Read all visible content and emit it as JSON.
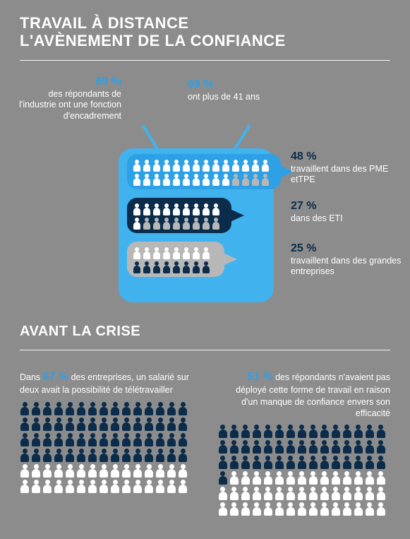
{
  "colors": {
    "background": "#8c8c8c",
    "accent_light": "#2ea0e6",
    "accent_tv": "#40b3ef",
    "navy": "#0b2c4a",
    "grey_people": "#b7b7b7",
    "white": "#ffffff"
  },
  "header": {
    "line1": "TRAVAIL À DISTANCE",
    "line2": "L'AVÈNEMENT DE LA CONFIANCE"
  },
  "section1": {
    "callout_left": {
      "pct": "69 %",
      "text": "des répondants de l'industrie ont une fonction d'encadrement"
    },
    "callout_top": {
      "pct": "69 %",
      "text": "ont plus de 41 ans"
    },
    "rows": [
      {
        "pct": "48 %",
        "label": "travaillent dans des PME etTPE",
        "filled": 24,
        "total": 28,
        "row_bg": "#2ea0e6",
        "fill_color": "#ffffff",
        "empty_color": "#b7b7b7"
      },
      {
        "pct": "27 %",
        "label": "dans des ETI",
        "filled": 10,
        "total": 18,
        "row_bg": "#0b2c4a",
        "fill_color": "#ffffff",
        "empty_color": "#b7b7b7"
      },
      {
        "pct": "25 %",
        "label": "travaillent dans des grandes entreprises",
        "filled": 8,
        "total": 16,
        "row_bg": "#b7b7b7",
        "fill_color": "#ffffff",
        "empty_color": "#0b2c4a"
      }
    ]
  },
  "section2": {
    "heading": "AVANT LA CRISE",
    "left": {
      "prefix": "Dans ",
      "pct": "67 %",
      "suffix": " des entreprises, un salarié sur deux avait la possibilité de télétravailler",
      "grid": {
        "total": 90,
        "filled": 60,
        "fill_color": "#0b2c4a",
        "empty_color": "#ffffff"
      }
    },
    "right": {
      "pct": "51 %",
      "suffix": " des répondants n'avaient pas déployé cette forme de travail en raison d'un manque de confiance envers son efficacité",
      "grid": {
        "total": 90,
        "filled": 46,
        "fill_color": "#0b2c4a",
        "empty_color": "#ffffff"
      }
    }
  }
}
